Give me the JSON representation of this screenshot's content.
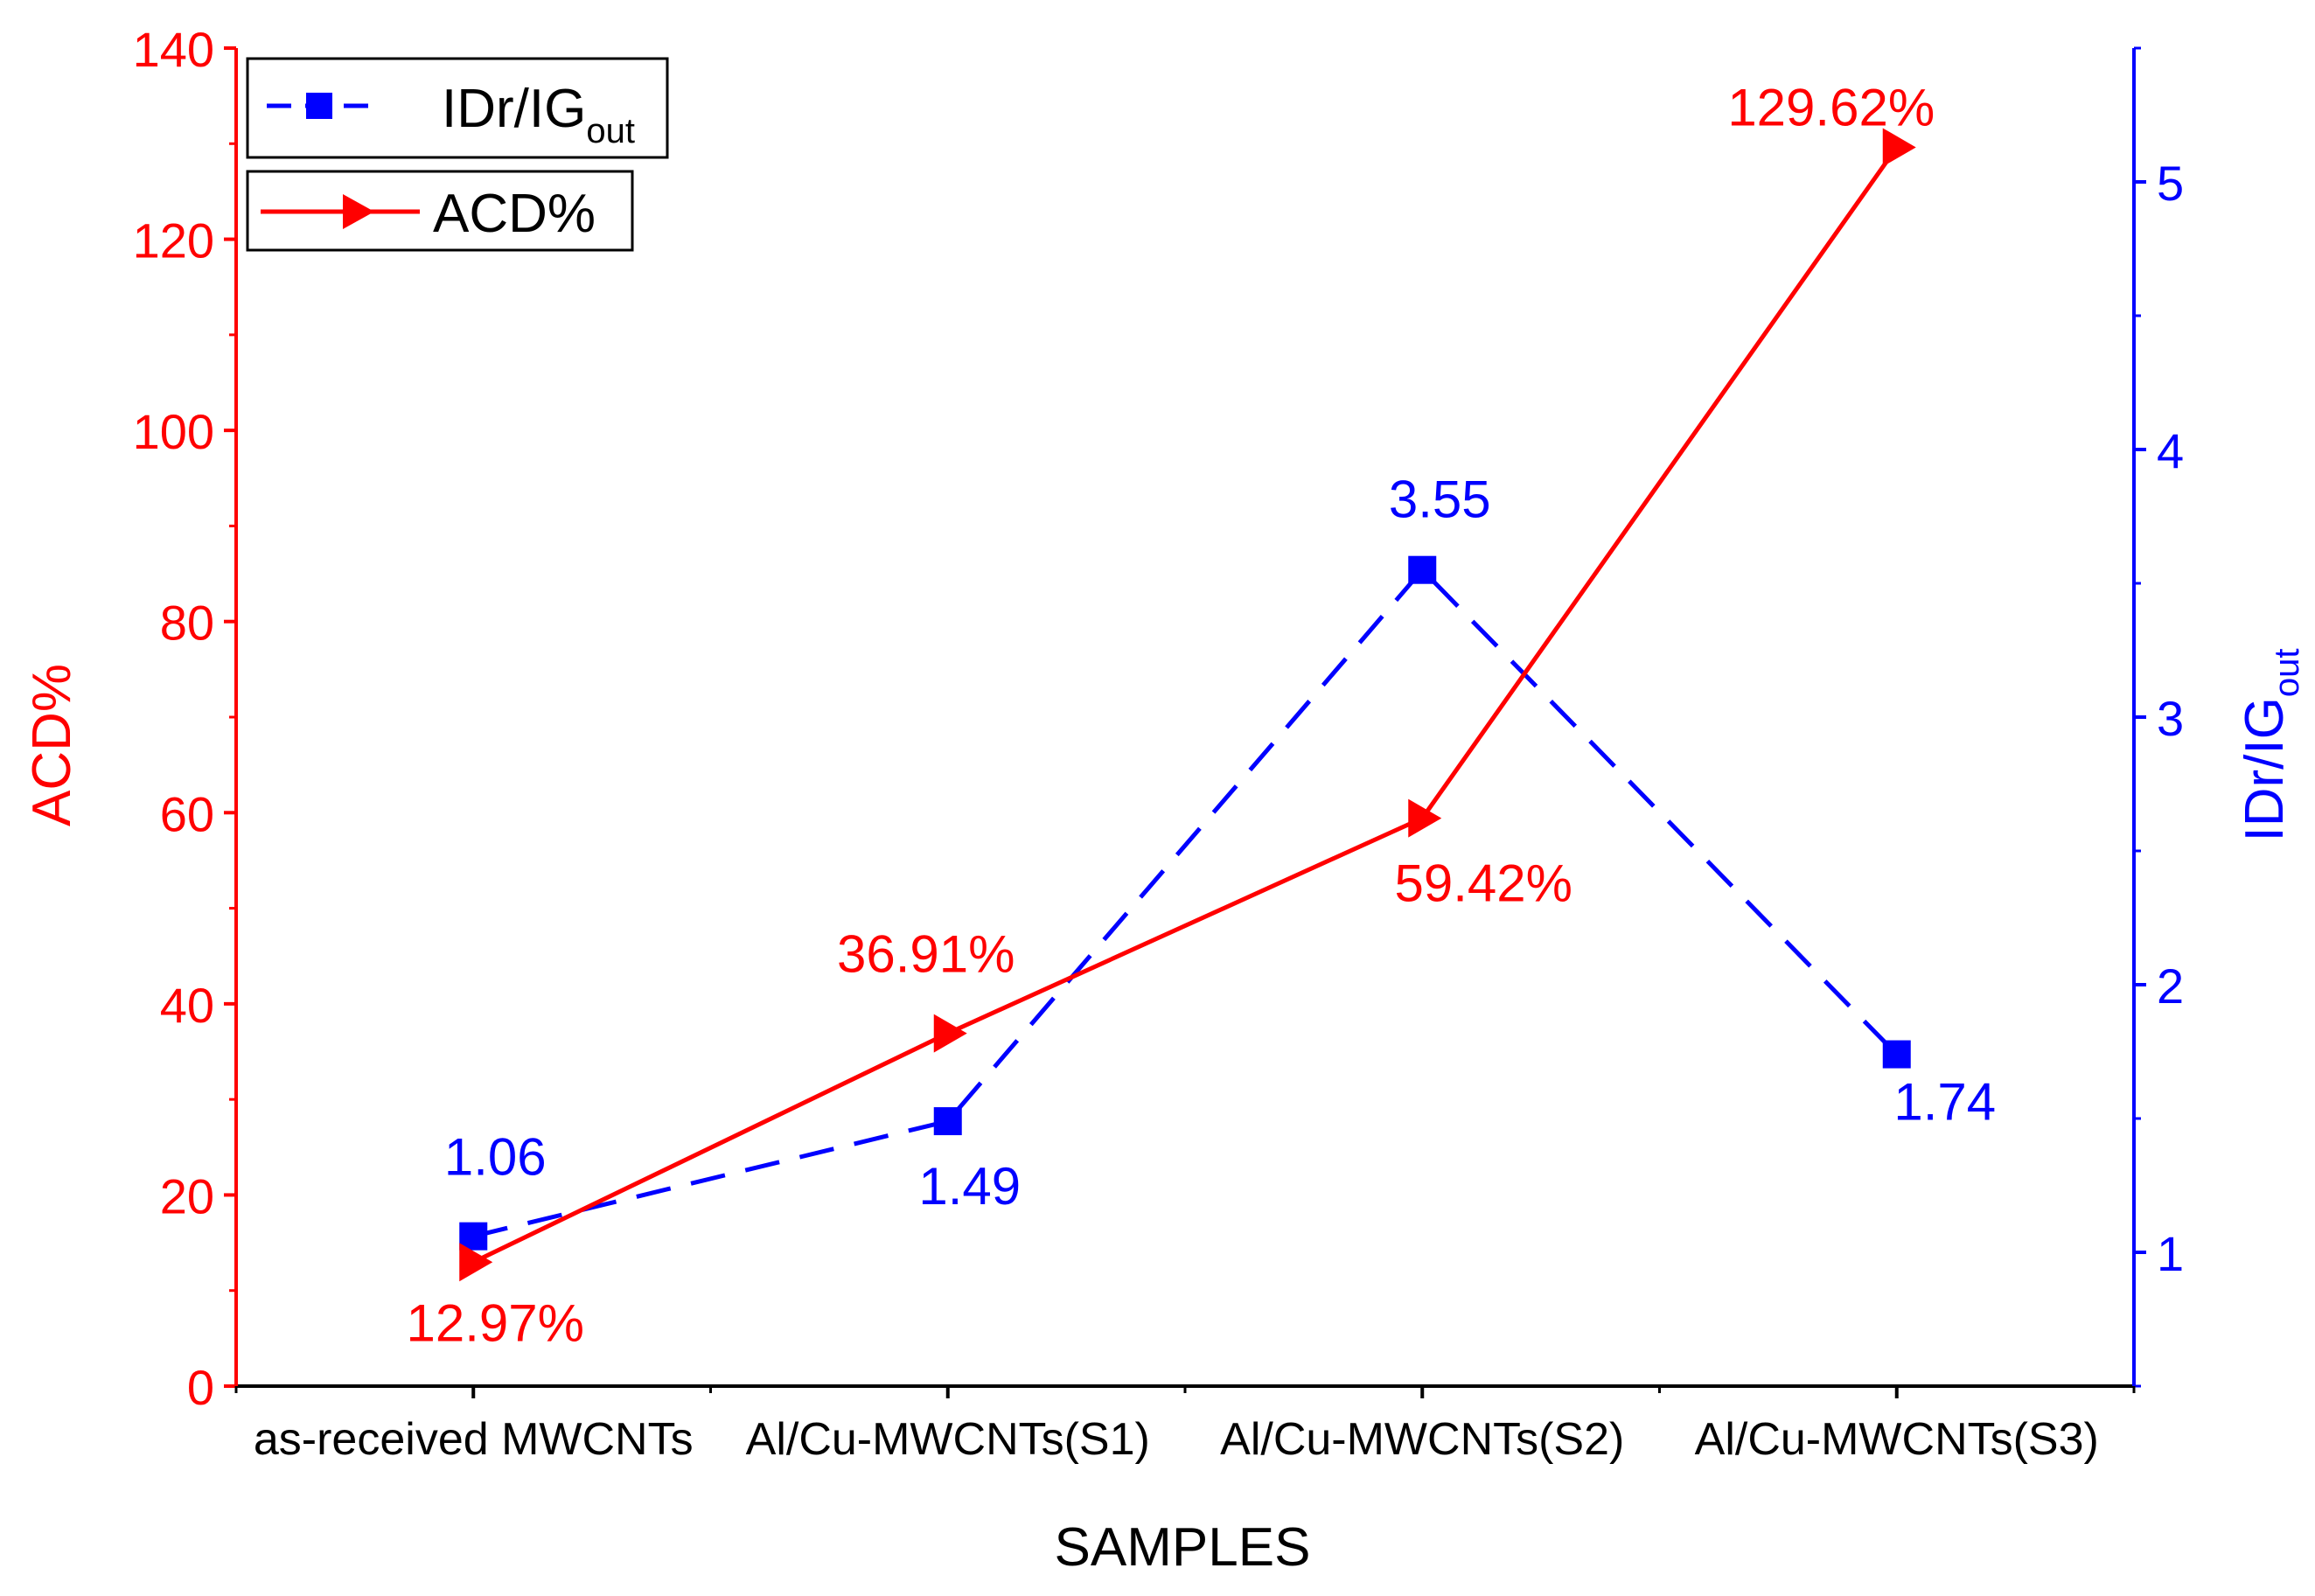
{
  "chart_data": {
    "type": "line",
    "title": "",
    "xlabel": "SAMPLES",
    "ylabel_left": "ACD%",
    "ylabel_right": {
      "main": "IDr/IG",
      "sub": "out"
    },
    "categories": [
      "as-received MWCNTs",
      "Al/Cu-MWCNTs(S1)",
      "Al/Cu-MWCNTs(S2)",
      "Al/Cu-MWCNTs(S3)"
    ],
    "ylim_left": [
      0,
      140
    ],
    "ylim_right": [
      0.5,
      5.5
    ],
    "left_ticks": [
      "0",
      "20",
      "40",
      "60",
      "80",
      "100",
      "120",
      "140"
    ],
    "right_ticks": [
      "1",
      "2",
      "3",
      "4",
      "5"
    ],
    "series": [
      {
        "name": "ACD%",
        "axis": "left",
        "color": "#ff0000",
        "marker": "right-triangle",
        "line": "solid",
        "values": [
          12.97,
          36.91,
          59.42,
          129.62
        ],
        "labels": [
          "12.97%",
          "36.91%",
          "59.42%",
          "129.62%"
        ]
      },
      {
        "name": "IDr/IG",
        "name_sub": "out",
        "axis": "right",
        "color": "#0000ff",
        "marker": "square",
        "line": "dashed",
        "values": [
          1.06,
          1.49,
          3.55,
          1.74
        ],
        "labels": [
          "1.06",
          "1.49",
          "3.55",
          "1.74"
        ]
      }
    ],
    "legend": [
      {
        "label": "IDr/IG",
        "sub": "out",
        "series": "IDr/IG"
      },
      {
        "label": "ACD%",
        "series": "ACD%"
      }
    ],
    "legend_position": "top-left",
    "grid": false
  }
}
